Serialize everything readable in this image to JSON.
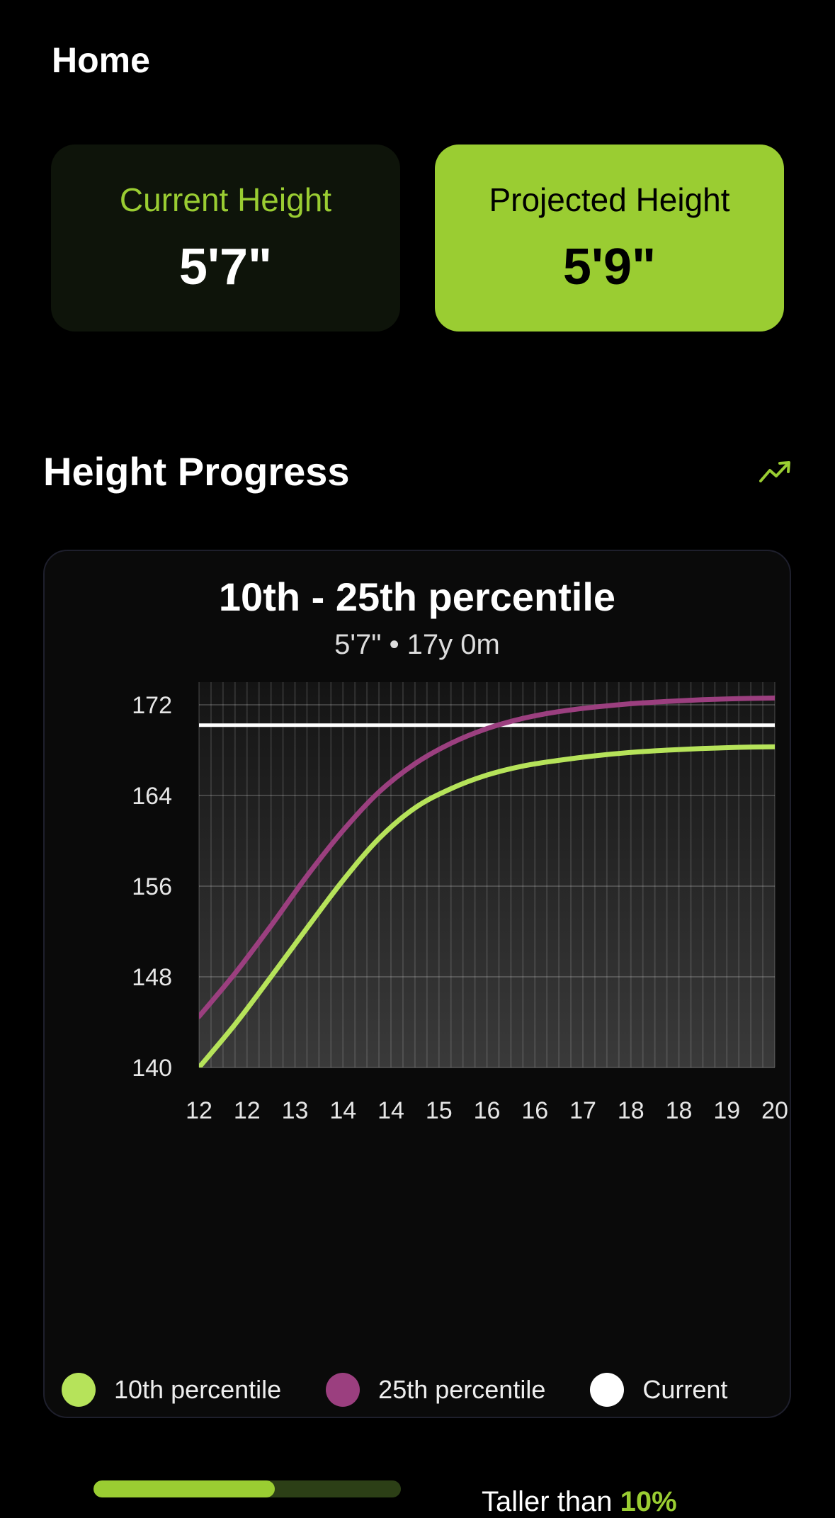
{
  "header": {
    "title": "Home"
  },
  "stats": {
    "current": {
      "label": "Current Height",
      "value": "5'7\""
    },
    "projected": {
      "label": "Projected Height",
      "value": "5'9\""
    }
  },
  "section": {
    "title": "Height Progress",
    "icon": "trending-up-icon"
  },
  "chart": {
    "title": "10th - 25th percentile",
    "subtitle": "5'7\" • 17y 0m"
  },
  "chart_data": {
    "type": "line",
    "title": "10th - 25th percentile",
    "subtitle": "5'7\" • 17y 0m",
    "x_tick_labels": [
      "12",
      "12",
      "13",
      "14",
      "14",
      "15",
      "16",
      "16",
      "17",
      "18",
      "18",
      "19",
      "20"
    ],
    "xlim": [
      12,
      20
    ],
    "y_ticks": [
      140,
      148,
      156,
      164,
      172
    ],
    "ylim": [
      140,
      174
    ],
    "grid": true,
    "legend_position": "bottom",
    "series": [
      {
        "name": "10th percentile",
        "color": "#b6e35a",
        "x": [
          12,
          12.5,
          13,
          13.5,
          14,
          14.5,
          15,
          15.5,
          16,
          16.5,
          17,
          17.5,
          18,
          18.5,
          19,
          19.5,
          20
        ],
        "y": [
          140.0,
          143.8,
          148.0,
          152.3,
          156.5,
          160.2,
          162.9,
          164.6,
          165.8,
          166.6,
          167.1,
          167.5,
          167.8,
          168.0,
          168.15,
          168.25,
          168.3
        ]
      },
      {
        "name": "25th percentile",
        "color": "#9b3f7f",
        "x": [
          12,
          12.5,
          13,
          13.5,
          14,
          14.5,
          15,
          15.5,
          16,
          16.5,
          17,
          17.5,
          18,
          18.5,
          19,
          19.5,
          20
        ],
        "y": [
          144.5,
          148.3,
          152.5,
          156.9,
          160.9,
          164.3,
          166.8,
          168.6,
          169.9,
          170.8,
          171.4,
          171.8,
          172.1,
          172.3,
          172.45,
          172.55,
          172.6
        ]
      },
      {
        "name": "Current",
        "color": "#ffffff",
        "x": [
          12,
          20
        ],
        "y": [
          170.2,
          170.2
        ]
      }
    ]
  },
  "legend": [
    {
      "label": "10th percentile",
      "color": "#b6e35a"
    },
    {
      "label": "25th percentile",
      "color": "#9b3f7f"
    },
    {
      "label": "Current",
      "color": "#ffffff"
    }
  ],
  "comparison": {
    "prefix": "Taller than ",
    "percent": "10%",
    "progress": 0.59
  },
  "colors": {
    "accent": "#9acd32",
    "background": "#000000"
  }
}
